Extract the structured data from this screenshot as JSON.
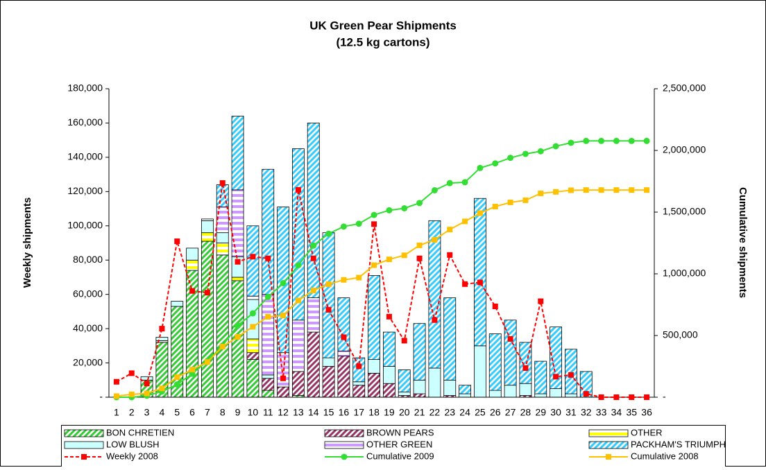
{
  "chart_data": {
    "type": "bar",
    "stacked": true,
    "title": "UK Green Pear Shipments",
    "subtitle": "(12.5 kg cartons)",
    "y_label": "Weekly shipments",
    "y2_label": "Cumulative shipments",
    "categories": [
      "1",
      "2",
      "3",
      "4",
      "5",
      "6",
      "7",
      "8",
      "9",
      "10",
      "11",
      "12",
      "13",
      "14",
      "15",
      "16",
      "17",
      "18",
      "19",
      "20",
      "21",
      "22",
      "23",
      "24",
      "25",
      "26",
      "27",
      "28",
      "29",
      "30",
      "31",
      "32",
      "33",
      "34",
      "35",
      "36"
    ],
    "ylim": [
      0,
      180000
    ],
    "yticks": [
      {
        "value": 0,
        "label": "-"
      },
      {
        "value": 20000,
        "label": "20,000"
      },
      {
        "value": 40000,
        "label": "40,000"
      },
      {
        "value": 60000,
        "label": "60,000"
      },
      {
        "value": 80000,
        "label": "80,000"
      },
      {
        "value": 100000,
        "label": "100,000"
      },
      {
        "value": 120000,
        "label": "120,000"
      },
      {
        "value": 140000,
        "label": "140,000"
      },
      {
        "value": 160000,
        "label": "160,000"
      },
      {
        "value": 180000,
        "label": "180,000"
      }
    ],
    "y2lim": [
      0,
      2500000
    ],
    "y2ticks": [
      {
        "value": 0,
        "label": "-"
      },
      {
        "value": 500000,
        "label": "500,000"
      },
      {
        "value": 1000000,
        "label": "1,000,000"
      },
      {
        "value": 1500000,
        "label": "1,500,000"
      },
      {
        "value": 2000000,
        "label": "2,000,000"
      },
      {
        "value": 2500000,
        "label": "2,500,000"
      }
    ],
    "legend": "bottom",
    "series": [
      {
        "name": "BON CHRETIEN",
        "type": "bar",
        "color": "#33cc33",
        "fill_pattern": "diagonal",
        "values": [
          0,
          0,
          10000,
          32000,
          53000,
          74000,
          91000,
          83000,
          68000,
          22000,
          4000,
          0,
          1000,
          0,
          0,
          0,
          0,
          0,
          0,
          0,
          0,
          0,
          0,
          0,
          0,
          0,
          0,
          0,
          0,
          0,
          0,
          0,
          0,
          0,
          0,
          0
        ]
      },
      {
        "name": "BROWN PEARS",
        "type": "bar",
        "color": "#993366",
        "fill_pattern": "diagonal",
        "values": [
          0,
          0,
          0,
          0,
          0,
          0,
          0,
          0,
          0,
          4000,
          7000,
          6000,
          14000,
          38000,
          18000,
          24000,
          7000,
          14000,
          8000,
          1000,
          2000,
          0,
          1000,
          0,
          0,
          0,
          0,
          1000,
          0,
          0,
          0,
          0,
          0,
          0,
          0,
          0
        ]
      },
      {
        "name": "OTHER",
        "type": "bar",
        "color": "#ffff00",
        "fill_pattern": "horizontal",
        "values": [
          0,
          0,
          0,
          1000,
          0,
          6000,
          5000,
          7000,
          2000,
          8000,
          0,
          0,
          0,
          0,
          0,
          0,
          0,
          0,
          0,
          0,
          0,
          0,
          0,
          0,
          0,
          0,
          0,
          0,
          0,
          0,
          0,
          0,
          0,
          0,
          0,
          0
        ]
      },
      {
        "name": "LOW BLUSH",
        "type": "bar",
        "color": "#ccffff",
        "fill_pattern": "solid",
        "values": [
          0,
          0,
          2000,
          2000,
          3000,
          7000,
          7000,
          6000,
          12000,
          23000,
          2000,
          0,
          0,
          0,
          5000,
          0,
          2000,
          8000,
          10000,
          2000,
          8000,
          17000,
          9000,
          2000,
          30000,
          4000,
          7000,
          7000,
          2000,
          5000,
          2000,
          0,
          0,
          0,
          0,
          0
        ]
      },
      {
        "name": "OTHER GREEN",
        "type": "bar",
        "color": "#cc99ff",
        "fill_pattern": "horizontal",
        "values": [
          0,
          0,
          0,
          0,
          0,
          0,
          1000,
          15000,
          39000,
          2000,
          47000,
          20000,
          30000,
          20000,
          0,
          3000,
          0,
          0,
          0,
          0,
          0,
          0,
          0,
          0,
          0,
          0,
          0,
          0,
          0,
          0,
          0,
          0,
          0,
          0,
          0,
          0
        ]
      },
      {
        "name": "PACKHAM'S TRIUMPH",
        "type": "bar",
        "color": "#33ccff",
        "fill_pattern": "diagonal",
        "values": [
          0,
          0,
          0,
          0,
          0,
          0,
          0,
          13000,
          43000,
          41000,
          73000,
          85000,
          100000,
          102000,
          73000,
          31000,
          14000,
          49000,
          20000,
          13000,
          33000,
          86000,
          48000,
          5000,
          86000,
          33000,
          38000,
          24000,
          19000,
          36000,
          26000,
          15000,
          0,
          0,
          0,
          0
        ]
      },
      {
        "name": "Weekly 2008",
        "type": "line",
        "color": "#ff0000",
        "dash": true,
        "marker": "square",
        "values": [
          9000,
          14000,
          8000,
          40000,
          91000,
          62000,
          61000,
          125000,
          79000,
          82000,
          81000,
          11000,
          121000,
          81000,
          51000,
          35000,
          18000,
          101000,
          47000,
          33000,
          81000,
          45000,
          83000,
          66000,
          67000,
          53000,
          34000,
          17000,
          56000,
          12000,
          13000,
          2000,
          0,
          0,
          0,
          0
        ]
      },
      {
        "name": "Cumulative 2009",
        "type": "line",
        "axis": "y2",
        "color": "#33dd33",
        "dash": false,
        "marker": "circle",
        "values": [
          0,
          0,
          12000,
          47000,
          103000,
          190000,
          294000,
          418000,
          580000,
          680000,
          813000,
          924000,
          1069000,
          1229000,
          1325000,
          1383000,
          1406000,
          1477000,
          1515000,
          1531000,
          1574000,
          1677000,
          1735000,
          1742000,
          1858000,
          1895000,
          1940000,
          1972000,
          1993000,
          2034000,
          2062000,
          2077000,
          2077000,
          2077000,
          2077000,
          2077000
        ]
      },
      {
        "name": "Cumulative 2008",
        "type": "line",
        "axis": "y2",
        "color": "#ffc000",
        "dash": false,
        "marker": "square",
        "values": [
          9000,
          23000,
          31000,
          71000,
          162000,
          224000,
          285000,
          410000,
          489000,
          571000,
          652000,
          663000,
          784000,
          865000,
          916000,
          951000,
          969000,
          1070000,
          1117000,
          1150000,
          1231000,
          1276000,
          1359000,
          1425000,
          1492000,
          1545000,
          1579000,
          1596000,
          1652000,
          1664000,
          1677000,
          1679000,
          1679000,
          1679000,
          1679000,
          1679000
        ]
      }
    ]
  }
}
